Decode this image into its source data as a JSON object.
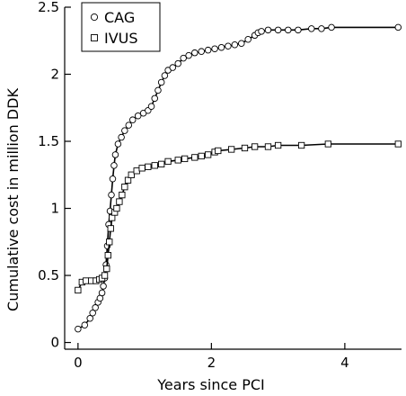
{
  "chart_data": {
    "type": "line",
    "xlabel": "Years since PCI",
    "ylabel": "Cumulative cost in million DDK",
    "xlim": [
      -0.2,
      4.85
    ],
    "ylim": [
      -0.05,
      2.5
    ],
    "xticks": [
      0,
      2,
      4
    ],
    "xtick_labels": [
      "0",
      "2",
      "4"
    ],
    "yticks": [
      0,
      0.5,
      1,
      1.5,
      2,
      2.5
    ],
    "ytick_labels": [
      "0",
      "0.5",
      "1",
      "1.5",
      "2",
      "2.5"
    ],
    "grid": false,
    "legend_position": "top-left",
    "series": [
      {
        "name": "CAG",
        "marker": "circle",
        "points": [
          [
            0,
            0.1
          ],
          [
            0.1,
            0.13
          ],
          [
            0.18,
            0.18
          ],
          [
            0.22,
            0.22
          ],
          [
            0.26,
            0.26
          ],
          [
            0.3,
            0.3
          ],
          [
            0.33,
            0.33
          ],
          [
            0.36,
            0.37
          ],
          [
            0.38,
            0.42
          ],
          [
            0.4,
            0.48
          ],
          [
            0.42,
            0.58
          ],
          [
            0.44,
            0.72
          ],
          [
            0.46,
            0.88
          ],
          [
            0.48,
            0.98
          ],
          [
            0.5,
            1.1
          ],
          [
            0.52,
            1.22
          ],
          [
            0.54,
            1.32
          ],
          [
            0.56,
            1.4
          ],
          [
            0.6,
            1.48
          ],
          [
            0.65,
            1.53
          ],
          [
            0.7,
            1.58
          ],
          [
            0.76,
            1.62
          ],
          [
            0.82,
            1.66
          ],
          [
            0.9,
            1.69
          ],
          [
            0.98,
            1.71
          ],
          [
            1.05,
            1.73
          ],
          [
            1.1,
            1.76
          ],
          [
            1.15,
            1.82
          ],
          [
            1.2,
            1.88
          ],
          [
            1.25,
            1.94
          ],
          [
            1.3,
            1.99
          ],
          [
            1.35,
            2.03
          ],
          [
            1.42,
            2.05
          ],
          [
            1.5,
            2.08
          ],
          [
            1.58,
            2.12
          ],
          [
            1.66,
            2.14
          ],
          [
            1.75,
            2.16
          ],
          [
            1.85,
            2.17
          ],
          [
            1.95,
            2.18
          ],
          [
            2.05,
            2.19
          ],
          [
            2.15,
            2.2
          ],
          [
            2.25,
            2.21
          ],
          [
            2.35,
            2.22
          ],
          [
            2.45,
            2.23
          ],
          [
            2.55,
            2.26
          ],
          [
            2.65,
            2.29
          ],
          [
            2.7,
            2.31
          ],
          [
            2.75,
            2.32
          ],
          [
            2.85,
            2.33
          ],
          [
            3.0,
            2.33
          ],
          [
            3.15,
            2.33
          ],
          [
            3.3,
            2.33
          ],
          [
            3.5,
            2.34
          ],
          [
            3.65,
            2.34
          ],
          [
            3.8,
            2.35
          ],
          [
            4.8,
            2.35
          ]
        ]
      },
      {
        "name": "IVUS",
        "marker": "square",
        "points": [
          [
            0,
            0.39
          ],
          [
            0.06,
            0.45
          ],
          [
            0.12,
            0.46
          ],
          [
            0.2,
            0.46
          ],
          [
            0.27,
            0.46
          ],
          [
            0.32,
            0.47
          ],
          [
            0.36,
            0.48
          ],
          [
            0.4,
            0.5
          ],
          [
            0.43,
            0.55
          ],
          [
            0.45,
            0.65
          ],
          [
            0.47,
            0.75
          ],
          [
            0.49,
            0.85
          ],
          [
            0.51,
            0.93
          ],
          [
            0.55,
            0.97
          ],
          [
            0.58,
            1.0
          ],
          [
            0.62,
            1.05
          ],
          [
            0.66,
            1.1
          ],
          [
            0.7,
            1.16
          ],
          [
            0.75,
            1.21
          ],
          [
            0.8,
            1.25
          ],
          [
            0.88,
            1.28
          ],
          [
            0.96,
            1.3
          ],
          [
            1.05,
            1.31
          ],
          [
            1.15,
            1.32
          ],
          [
            1.25,
            1.33
          ],
          [
            1.35,
            1.35
          ],
          [
            1.5,
            1.36
          ],
          [
            1.6,
            1.37
          ],
          [
            1.75,
            1.38
          ],
          [
            1.85,
            1.39
          ],
          [
            1.95,
            1.4
          ],
          [
            2.05,
            1.42
          ],
          [
            2.1,
            1.43
          ],
          [
            2.3,
            1.44
          ],
          [
            2.5,
            1.45
          ],
          [
            2.65,
            1.46
          ],
          [
            2.85,
            1.46
          ],
          [
            3.0,
            1.47
          ],
          [
            3.35,
            1.47
          ],
          [
            3.75,
            1.48
          ],
          [
            4.8,
            1.48
          ]
        ]
      }
    ]
  }
}
